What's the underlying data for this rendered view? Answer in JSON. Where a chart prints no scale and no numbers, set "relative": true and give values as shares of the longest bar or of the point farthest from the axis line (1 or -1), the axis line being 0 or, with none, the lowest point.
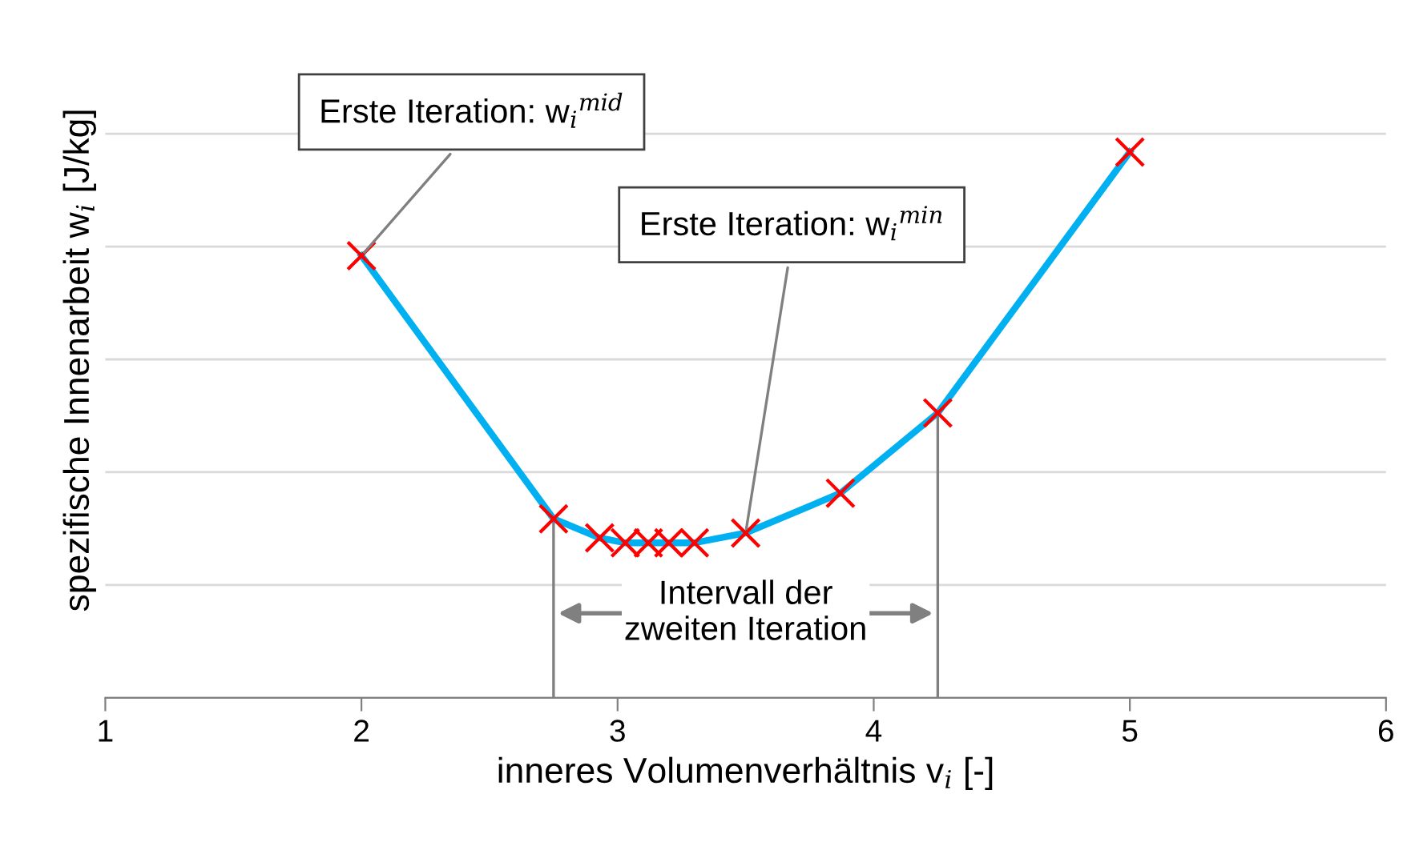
{
  "chart_data": {
    "type": "line",
    "relative": true,
    "xlabel": "inneres Volumenverhältnis v$_{i}$ [-]",
    "ylabel": "spezifische Innenarbeit w$_{i}$ [J/kg]",
    "x": [
      2,
      2.75,
      2.93,
      3.03,
      3.12,
      3.2,
      3.3,
      3.5,
      3.87,
      4.25,
      5
    ],
    "xlim": [
      1,
      6
    ],
    "xticks": [
      1,
      2,
      3,
      4,
      5,
      6
    ],
    "tick_labels": "x",
    "grid": "y",
    "series": [
      {
        "color": "#00b0f0",
        "marker": "none",
        "line_style": "solid",
        "values": [
          0.81,
          0.328,
          0.293,
          0.284,
          0.284,
          0.284,
          0.284,
          0.302,
          0.375,
          0.522,
          1
        ]
      },
      {
        "type": "scatter",
        "color": "#ff0000",
        "marker": "cross",
        "values": [
          0.81,
          0.328,
          0.293,
          0.284,
          0.284,
          0.284,
          0.284,
          0.302,
          0.375,
          0.522,
          1
        ]
      }
    ],
    "annotations": [
      {
        "text": "Erste Iteration: w$_{i}$$^{mid}$",
        "x": 2,
        "y": 0.81
      },
      {
        "text": "Erste Iteration: w$_{i}$$^{min}$",
        "x": 3.5,
        "y": 0.302
      },
      "Intervall der\nzweiten Iteration"
    ],
    "ref_lines": [
      {
        "axis": "x",
        "value": 2.75,
        "color": "#808080"
      },
      {
        "axis": "x",
        "value": 4.25,
        "color": "#808080"
      }
    ]
  }
}
